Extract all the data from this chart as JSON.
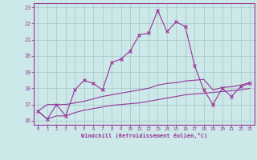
{
  "xlabel": "Windchill (Refroidissement éolien,°C)",
  "x_values": [
    0,
    1,
    2,
    3,
    4,
    5,
    6,
    7,
    8,
    9,
    10,
    11,
    12,
    13,
    14,
    15,
    16,
    17,
    18,
    19,
    20,
    21,
    22,
    23
  ],
  "main_line": [
    16.6,
    16.1,
    17.0,
    16.3,
    17.9,
    18.5,
    18.3,
    17.9,
    19.6,
    19.8,
    20.3,
    21.3,
    21.4,
    22.8,
    21.5,
    22.1,
    21.8,
    19.4,
    17.9,
    17.0,
    18.0,
    17.5,
    18.1,
    18.3
  ],
  "low_line": [
    16.6,
    16.1,
    16.3,
    16.3,
    16.5,
    16.65,
    16.75,
    16.85,
    16.95,
    17.0,
    17.05,
    17.1,
    17.2,
    17.3,
    17.4,
    17.5,
    17.6,
    17.65,
    17.7,
    17.75,
    17.8,
    17.85,
    17.9,
    18.0
  ],
  "high_line": [
    16.6,
    17.0,
    17.0,
    17.0,
    17.1,
    17.2,
    17.35,
    17.5,
    17.6,
    17.7,
    17.8,
    17.9,
    18.0,
    18.2,
    18.3,
    18.35,
    18.45,
    18.5,
    18.55,
    17.9,
    18.05,
    18.1,
    18.2,
    18.35
  ],
  "line_color": "#993399",
  "bg_color": "#cce8e8",
  "grid_color": "#aacccc",
  "ylim": [
    15.75,
    23.25
  ],
  "yticks": [
    16,
    17,
    18,
    19,
    20,
    21,
    22,
    23
  ],
  "xlim": [
    -0.5,
    23.5
  ]
}
